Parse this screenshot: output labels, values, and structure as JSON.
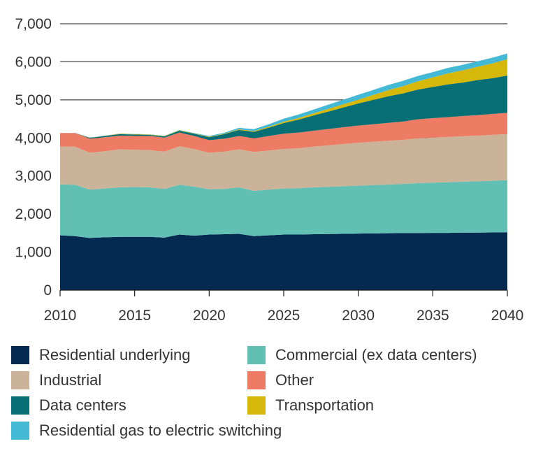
{
  "chart_data": {
    "type": "area",
    "stacked": true,
    "title": "",
    "xlabel": "",
    "ylabel": "",
    "xlim": [
      2010,
      2040
    ],
    "ylim": [
      0,
      7000
    ],
    "grid": "horizontal",
    "legend_position": "bottom",
    "x_ticks": [
      "2010",
      "2015",
      "2020",
      "2025",
      "2030",
      "2035",
      "2040"
    ],
    "y_ticks": [
      "0",
      "1,000",
      "2,000",
      "3,000",
      "4,000",
      "5,000",
      "6,000",
      "7,000"
    ],
    "x": [
      2010,
      2011,
      2012,
      2013,
      2014,
      2015,
      2016,
      2017,
      2018,
      2019,
      2020,
      2021,
      2022,
      2023,
      2024,
      2025,
      2026,
      2027,
      2028,
      2029,
      2030,
      2031,
      2032,
      2033,
      2034,
      2035,
      2036,
      2037,
      2038,
      2039,
      2040
    ],
    "series": [
      {
        "name": "Residential underlying",
        "color": "#052a52",
        "values": [
          1440,
          1420,
          1370,
          1390,
          1400,
          1400,
          1400,
          1380,
          1460,
          1430,
          1460,
          1470,
          1480,
          1420,
          1440,
          1460,
          1460,
          1470,
          1475,
          1480,
          1485,
          1490,
          1495,
          1500,
          1500,
          1505,
          1505,
          1510,
          1510,
          1515,
          1520
        ]
      },
      {
        "name": "Commercial (ex data centers)",
        "color": "#62bfb4",
        "values": [
          1340,
          1350,
          1270,
          1280,
          1300,
          1310,
          1300,
          1280,
          1310,
          1290,
          1190,
          1190,
          1220,
          1190,
          1200,
          1210,
          1220,
          1230,
          1240,
          1250,
          1260,
          1270,
          1280,
          1290,
          1310,
          1320,
          1330,
          1340,
          1350,
          1360,
          1370
        ]
      },
      {
        "name": "Industrial",
        "color": "#cbb399",
        "values": [
          990,
          1000,
          970,
          980,
          1000,
          980,
          980,
          980,
          1010,
          990,
          960,
          980,
          1000,
          1020,
          1030,
          1040,
          1050,
          1070,
          1090,
          1110,
          1130,
          1140,
          1150,
          1160,
          1180,
          1185,
          1190,
          1195,
          1200,
          1205,
          1210
        ]
      },
      {
        "name": "Other",
        "color": "#ee7b63",
        "values": [
          360,
          360,
          370,
          370,
          360,
          360,
          370,
          370,
          360,
          340,
          330,
          340,
          350,
          360,
          380,
          400,
          410,
          420,
          430,
          440,
          450,
          460,
          470,
          480,
          500,
          510,
          520,
          530,
          540,
          550,
          560
        ]
      },
      {
        "name": "Data centers",
        "color": "#066f75",
        "values": [
          0,
          0,
          20,
          30,
          40,
          40,
          30,
          30,
          50,
          60,
          80,
          120,
          160,
          170,
          220,
          280,
          340,
          400,
          460,
          520,
          580,
          640,
          700,
          740,
          780,
          820,
          860,
          880,
          920,
          940,
          980
        ]
      },
      {
        "name": "Transportation",
        "color": "#d6b80b",
        "values": [
          0,
          0,
          5,
          5,
          10,
          10,
          10,
          10,
          10,
          10,
          10,
          10,
          15,
          20,
          25,
          35,
          45,
          55,
          70,
          85,
          100,
          130,
          160,
          190,
          220,
          250,
          290,
          320,
          350,
          390,
          430
        ]
      },
      {
        "name": "Residential gas to electric switching",
        "color": "#44b9d6",
        "values": [
          0,
          5,
          5,
          5,
          5,
          5,
          5,
          5,
          10,
          10,
          20,
          25,
          40,
          50,
          65,
          80,
          90,
          100,
          110,
          120,
          130,
          130,
          135,
          140,
          140,
          140,
          145,
          145,
          145,
          150,
          150
        ]
      }
    ]
  }
}
